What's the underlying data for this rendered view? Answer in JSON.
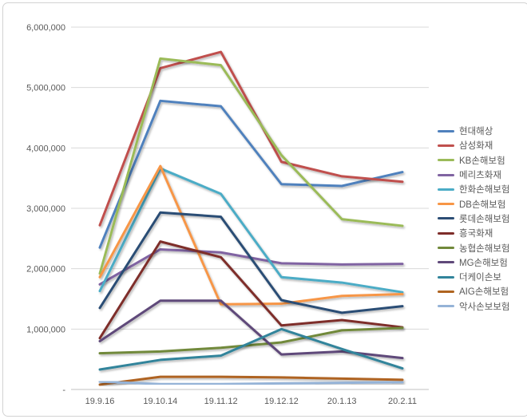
{
  "chart_data": {
    "type": "line",
    "title": "",
    "xlabel": "",
    "ylabel": "",
    "grid": true,
    "legend_position": "right",
    "ylim": [
      0,
      6000000
    ],
    "categories": [
      "19.9.16",
      "19.10.14",
      "19.11.12",
      "19.12.12",
      "20.1.13",
      "20.2.11"
    ],
    "y_ticks": [
      {
        "value": 0,
        "label": "-"
      },
      {
        "value": 1000000,
        "label": "1,000,000"
      },
      {
        "value": 2000000,
        "label": "2,000,000"
      },
      {
        "value": 3000000,
        "label": "3,000,000"
      },
      {
        "value": 4000000,
        "label": "4,000,000"
      },
      {
        "value": 5000000,
        "label": "5,000,000"
      },
      {
        "value": 6000000,
        "label": "6,000,000"
      }
    ],
    "series": [
      {
        "name": "현대해상",
        "color": "#4F81BD",
        "values": [
          2350000,
          4780000,
          4690000,
          3400000,
          3370000,
          3600000
        ]
      },
      {
        "name": "삼성화재",
        "color": "#C0504D",
        "values": [
          2720000,
          5320000,
          5590000,
          3770000,
          3530000,
          3440000
        ]
      },
      {
        "name": "KB손해보험",
        "color": "#9BBB59",
        "values": [
          1920000,
          5480000,
          5370000,
          3880000,
          2820000,
          2710000
        ]
      },
      {
        "name": "메리츠화재",
        "color": "#8064A2",
        "values": [
          1740000,
          2320000,
          2270000,
          2090000,
          2070000,
          2080000
        ]
      },
      {
        "name": "한화손해보험",
        "color": "#4BACC6",
        "values": [
          1630000,
          3660000,
          3240000,
          1860000,
          1770000,
          1610000
        ]
      },
      {
        "name": "DB손해보험",
        "color": "#F79646",
        "values": [
          1860000,
          3700000,
          1410000,
          1420000,
          1550000,
          1580000
        ]
      },
      {
        "name": "롯데손해보험",
        "color": "#2C4D75",
        "values": [
          1350000,
          2930000,
          2860000,
          1480000,
          1270000,
          1380000
        ]
      },
      {
        "name": "흥국화재",
        "color": "#7E2D2A",
        "values": [
          850000,
          2450000,
          2190000,
          1060000,
          1150000,
          1030000
        ]
      },
      {
        "name": "농협손해보험",
        "color": "#71893B",
        "values": [
          600000,
          630000,
          690000,
          780000,
          980000,
          1020000
        ]
      },
      {
        "name": "MG손해보험",
        "color": "#5F497A",
        "values": [
          800000,
          1470000,
          1470000,
          580000,
          630000,
          520000
        ]
      },
      {
        "name": "더케이손보",
        "color": "#31849B",
        "values": [
          330000,
          490000,
          560000,
          1000000,
          670000,
          350000
        ]
      },
      {
        "name": "AIG손해보험",
        "color": "#AF6420",
        "values": [
          80000,
          210000,
          210000,
          200000,
          180000,
          160000
        ]
      },
      {
        "name": "악사손보보험",
        "color": "#95B3D7",
        "values": [
          130000,
          90000,
          90000,
          100000,
          110000,
          120000
        ]
      }
    ]
  },
  "colors": {
    "grid": "#D9D9D9",
    "baseline": "#C0C0C0",
    "text": "#595959",
    "frame_border": "#D3D3D3",
    "background": "#FFFFFF"
  }
}
